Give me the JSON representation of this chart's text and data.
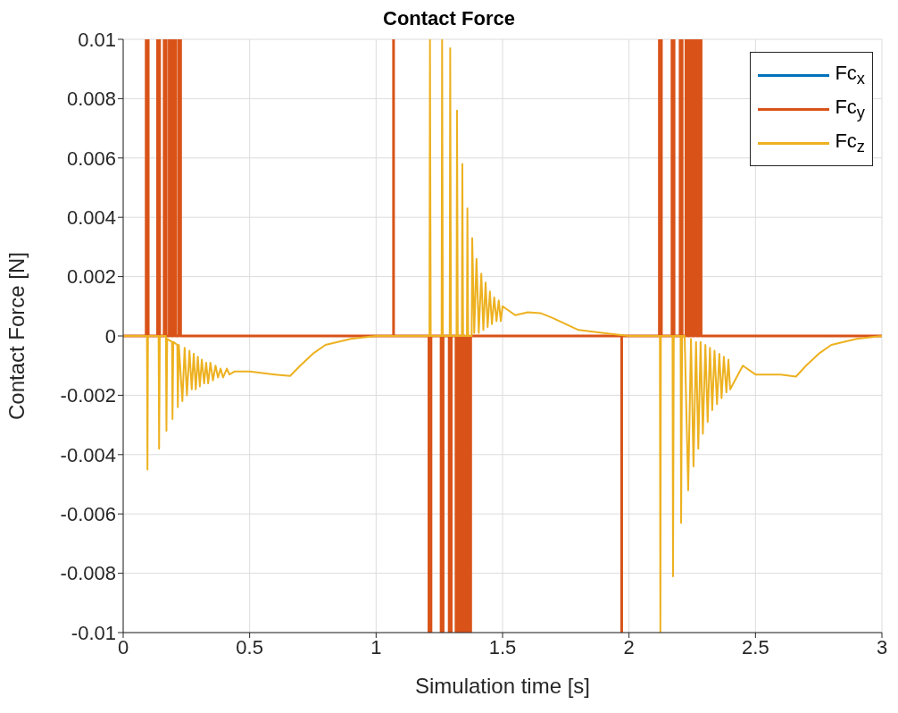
{
  "chart_data": {
    "type": "line",
    "title": "Contact Force",
    "xlabel": "Simulation time [s]",
    "ylabel": "Contact Force [N]",
    "xlim": [
      0,
      3
    ],
    "xticks": [
      0,
      0.5,
      1,
      1.5,
      2,
      2.5,
      3
    ],
    "ylim": [
      -0.01,
      0.01
    ],
    "yticks": [
      -0.01,
      -0.008,
      -0.006,
      -0.004,
      -0.002,
      0,
      0.002,
      0.004,
      0.006,
      0.008,
      0.01
    ],
    "grid": true,
    "legend": "top right",
    "marker": "none",
    "line_style": "solid",
    "series": [
      {
        "name": "Fc$_{x}$",
        "color": "#0072bd"
      },
      {
        "name": "Fc$_{y}$",
        "color": "#d95319",
        "x": [
          0,
          0.091,
          0.091,
          0.099,
          0.099,
          0.136,
          0.136,
          0.144,
          0.144,
          0.162,
          0.162,
          0.17,
          0.17,
          0.182,
          0.182,
          0.19,
          0.19,
          0.199,
          0.199,
          0.207,
          0.207,
          0.219,
          0.219,
          0.227,
          0.227,
          1.069,
          1.069,
          1.069,
          1.209,
          1.209,
          1.217,
          1.217,
          1.257,
          1.257,
          1.265,
          1.265,
          1.289,
          1.289,
          1.297,
          1.297,
          1.316,
          1.316,
          1.324,
          1.324,
          1.333,
          1.333,
          1.341,
          1.341,
          1.351,
          1.351,
          1.359,
          1.359,
          1.366,
          1.366,
          1.374,
          1.374,
          1.971,
          1.971,
          1.971,
          2.12,
          2.12,
          2.128,
          2.128,
          2.17,
          2.17,
          2.178,
          2.178,
          2.202,
          2.202,
          2.21,
          2.21,
          2.225,
          2.225,
          2.233,
          2.233,
          2.241,
          2.241,
          2.249,
          2.249,
          2.259,
          2.259,
          2.267,
          2.267,
          2.277,
          2.277,
          2.285,
          2.285,
          3
        ],
        "values": [
          0,
          0,
          0.01,
          0.01,
          0,
          0,
          0.01,
          0.01,
          0,
          0,
          0.01,
          0.01,
          0,
          0,
          0.01,
          0.01,
          0,
          0,
          0.01,
          0.01,
          0,
          0,
          0.01,
          0.01,
          0,
          0,
          0.01,
          0,
          0,
          -0.01,
          -0.01,
          0,
          0,
          -0.01,
          -0.01,
          0,
          0,
          -0.01,
          -0.01,
          0,
          0,
          -0.01,
          -0.01,
          0,
          0,
          -0.01,
          -0.01,
          0,
          0,
          -0.01,
          -0.01,
          0,
          0,
          -0.01,
          -0.01,
          0,
          0,
          -0.01,
          0,
          0,
          0.01,
          0.01,
          0,
          0,
          0.01,
          0.01,
          0,
          0,
          0.01,
          0.01,
          0,
          0,
          0.01,
          0.01,
          0,
          0,
          0.01,
          0.01,
          0,
          0,
          0.01,
          0.01,
          0,
          0,
          0.01,
          0.01,
          0,
          0
        ]
      },
      {
        "name": "Fc$_{z}$",
        "color": "#edb120",
        "x": [
          0,
          0.094,
          0.096,
          0.098,
          0.14,
          0.142,
          0.145,
          0.169,
          0.171,
          0.174,
          0.193,
          0.195,
          0.198,
          0.214,
          0.216,
          0.22,
          0.234,
          0.243,
          0.252,
          0.262,
          0.271,
          0.279,
          0.287,
          0.295,
          0.303,
          0.311,
          0.32,
          0.328,
          0.336,
          0.345,
          0.355,
          0.365,
          0.375,
          0.385,
          0.395,
          0.41,
          0.42,
          0.44,
          0.5,
          0.6,
          0.66,
          0.7,
          0.75,
          0.8,
          0.9,
          1.0,
          1.211,
          1.213,
          1.216,
          1.259,
          1.261,
          1.264,
          1.291,
          1.293,
          1.296,
          1.318,
          1.32,
          1.323,
          1.339,
          1.341,
          1.344,
          1.359,
          1.361,
          1.364,
          1.378,
          1.38,
          1.388,
          1.397,
          1.406,
          1.416,
          1.424,
          1.433,
          1.441,
          1.45,
          1.458,
          1.467,
          1.476,
          1.485,
          1.493,
          1.5,
          1.55,
          1.6,
          1.65,
          1.7,
          1.8,
          1.9,
          2.0,
          2.122,
          2.124,
          2.126,
          2.172,
          2.174,
          2.177,
          2.204,
          2.206,
          2.21,
          2.22,
          2.234,
          2.245,
          2.255,
          2.265,
          2.274,
          2.283,
          2.292,
          2.302,
          2.311,
          2.32,
          2.329,
          2.338,
          2.348,
          2.357,
          2.366,
          2.375,
          2.385,
          2.393,
          2.4,
          2.45,
          2.5,
          2.6,
          2.66,
          2.7,
          2.75,
          2.8,
          2.9,
          3.0
        ],
        "values": [
          0,
          0,
          -0.0045,
          0,
          0,
          -0.0038,
          0,
          0,
          -0.0032,
          -0.0001,
          -0.0002,
          -0.0028,
          -0.0002,
          -0.0003,
          -0.0024,
          -0.0003,
          -0.0022,
          -0.0004,
          -0.002,
          -0.0005,
          -0.0018,
          -0.0006,
          -0.0018,
          -0.0007,
          -0.0017,
          -0.0008,
          -0.0016,
          -0.0009,
          -0.0016,
          -0.0009,
          -0.0015,
          -0.001,
          -0.0014,
          -0.0011,
          -0.0014,
          -0.0011,
          -0.0013,
          -0.0012,
          -0.0012,
          -0.0013,
          -0.00135,
          -0.001,
          -0.0006,
          -0.0003,
          -0.0001,
          0,
          0,
          0.01,
          0,
          0,
          0.01,
          0,
          0,
          0.0097,
          0,
          0,
          0.0076,
          0,
          0,
          0.0058,
          0,
          0,
          0.0043,
          0,
          0,
          0.0033,
          0.0001,
          0.0026,
          0.0001,
          0.0021,
          0.0002,
          0.0018,
          0.0003,
          0.0015,
          0.0004,
          0.0013,
          0.0005,
          0.0012,
          0.0005,
          0.001,
          0.0007,
          0.0008,
          0.00077,
          0.0006,
          0.0002,
          0.0001,
          0,
          0,
          -0.01,
          0,
          0,
          -0.0081,
          0,
          0,
          -0.0063,
          0,
          0,
          -0.0052,
          -0.0001,
          -0.0044,
          -0.0002,
          -0.0038,
          -0.0002,
          -0.0033,
          -0.0003,
          -0.0029,
          -0.0004,
          -0.0025,
          -0.0005,
          -0.0023,
          -0.0006,
          -0.0021,
          -0.0007,
          -0.0019,
          -0.0008,
          -0.0018,
          -0.001,
          -0.0013,
          -0.0013,
          -0.00137,
          -0.001,
          -0.0006,
          -0.0003,
          -0.0001,
          0
        ]
      }
    ]
  }
}
